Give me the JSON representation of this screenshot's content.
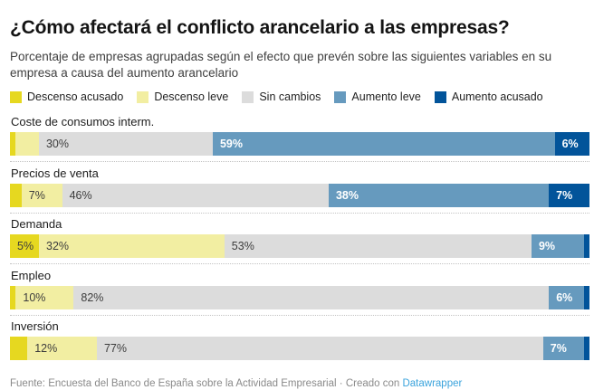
{
  "header": {
    "title": "¿Cómo afectará el conflicto arancelario a las empresas?",
    "subtitle": "Porcentaje de empresas agrupadas según el efecto que prevén sobre las siguientes variables en su empresa a causa del aumento arancelario"
  },
  "chart_data": {
    "type": "bar",
    "orientation": "horizontal",
    "stacked": true,
    "unit": "%",
    "xlim": [
      0,
      100
    ],
    "grid": false,
    "legend_position": "top",
    "label_visibility_min_percent": 5,
    "categories": [
      "Coste de consumos interm.",
      "Precios de venta",
      "Demanda",
      "Empleo",
      "Inversión"
    ],
    "series": [
      {
        "name": "Descenso acusado",
        "color": "#e6d820",
        "text": "dark",
        "values": [
          1,
          2,
          5,
          1,
          3
        ]
      },
      {
        "name": "Descenso leve",
        "color": "#f2eea2",
        "text": "dark",
        "values": [
          4,
          7,
          32,
          10,
          12
        ]
      },
      {
        "name": "Sin cambios",
        "color": "#dcdcdc",
        "text": "dark",
        "values": [
          30,
          46,
          53,
          82,
          77
        ]
      },
      {
        "name": "Aumento leve",
        "color": "#669abe",
        "text": "light",
        "values": [
          59,
          38,
          9,
          6,
          7
        ]
      },
      {
        "name": "Aumento acusado",
        "color": "#02549a",
        "text": "light",
        "values": [
          6,
          7,
          1,
          1,
          1
        ]
      }
    ],
    "visible_value_labels": {
      "Coste de consumos interm.": [
        "30%",
        "59%",
        "6%"
      ],
      "Precios de venta": [
        "7%",
        "46%",
        "38%",
        "7%"
      ],
      "Demanda": [
        "5%",
        "32%",
        "53%",
        "9%"
      ],
      "Empleo": [
        "10%",
        "82%",
        "6%"
      ],
      "Inversión": [
        "12%",
        "77%",
        "7%"
      ]
    }
  },
  "footer": {
    "source": "Fuente: Encuesta del Banco de España sobre la Actividad Empresarial",
    "separator": "·",
    "credit": "Creado con",
    "link_label": "Datawrapper",
    "link_color": "#3aa3dc"
  }
}
